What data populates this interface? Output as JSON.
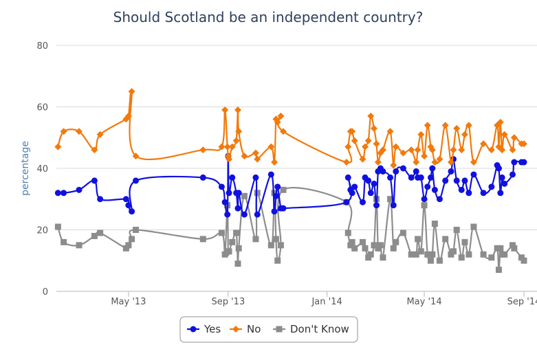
{
  "chart_data": {
    "type": "line",
    "title": "Should Scotland be an independent country?",
    "xlabel": "",
    "ylabel": "percentage",
    "ylim": [
      0,
      80
    ],
    "yticks": [
      "0",
      "20",
      "40",
      "60",
      "80"
    ],
    "xlim": [
      "2013-02-01",
      "2014-09-01"
    ],
    "xticks": [
      {
        "date": "2013-05-01",
        "label": "May '13"
      },
      {
        "date": "2013-09-01",
        "label": "Sep '13"
      },
      {
        "date": "2014-01-01",
        "label": "Jan '14"
      },
      {
        "date": "2014-05-01",
        "label": "May '14"
      },
      {
        "date": "2014-09-01",
        "label": "Sep '14"
      }
    ],
    "grid": true,
    "legend": "bottom-center",
    "series": [
      {
        "name": "Yes",
        "color": "#1010e0",
        "marker": "circle",
        "x": [
          "2013-02-03",
          "2013-02-10",
          "2013-03-01",
          "2013-03-20",
          "2013-03-27",
          "2013-04-28",
          "2013-05-01",
          "2013-05-05",
          "2013-05-10",
          "2013-08-01",
          "2013-08-24",
          "2013-08-28",
          "2013-08-31",
          "2013-09-01",
          "2013-09-02",
          "2013-09-06",
          "2013-09-11",
          "2013-09-13",
          "2013-09-14",
          "2013-09-21",
          "2013-10-05",
          "2013-10-07",
          "2013-10-24",
          "2013-10-28",
          "2013-10-30",
          "2013-11-01",
          "2013-11-05",
          "2013-11-08",
          "2014-01-25",
          "2014-01-27",
          "2014-01-30",
          "2014-02-01",
          "2014-02-04",
          "2014-02-14",
          "2014-02-17",
          "2014-02-21",
          "2014-02-24",
          "2014-02-28",
          "2014-03-03",
          "2014-03-05",
          "2014-03-08",
          "2014-03-11",
          "2014-03-20",
          "2014-03-24",
          "2014-03-27",
          "2014-04-05",
          "2014-04-15",
          "2014-04-21",
          "2014-04-23",
          "2014-04-27",
          "2014-05-01",
          "2014-05-05",
          "2014-05-09",
          "2014-05-11",
          "2014-05-14",
          "2014-05-20",
          "2014-05-27",
          "2014-06-03",
          "2014-06-06",
          "2014-06-10",
          "2014-06-16",
          "2014-06-20",
          "2014-06-25",
          "2014-07-01",
          "2014-07-13",
          "2014-07-23",
          "2014-07-30",
          "2014-08-01",
          "2014-08-03",
          "2014-08-05",
          "2014-08-08",
          "2014-08-18",
          "2014-08-20",
          "2014-08-29",
          "2014-09-01"
        ],
        "values": [
          32,
          32,
          33,
          36,
          30,
          30,
          28,
          26,
          36,
          37,
          34,
          29,
          25,
          44,
          32,
          37,
          32,
          27,
          32,
          25,
          37,
          25,
          38,
          26,
          31,
          34,
          27,
          27,
          29,
          37,
          33,
          32,
          34,
          29,
          37,
          36,
          32,
          35,
          28,
          39,
          40,
          39,
          37,
          28,
          39,
          40,
          37,
          39,
          37,
          37,
          30,
          34,
          37,
          40,
          33,
          30,
          36,
          39,
          43,
          36,
          33,
          36,
          32,
          38,
          32,
          34,
          41,
          40,
          32,
          37,
          35,
          38,
          42,
          42,
          42
        ]
      },
      {
        "name": "No",
        "color": "#f27a0c",
        "marker": "diamond",
        "x": [
          "2013-02-03",
          "2013-02-10",
          "2013-03-01",
          "2013-03-20",
          "2013-03-27",
          "2013-04-28",
          "2013-05-01",
          "2013-05-05",
          "2013-05-10",
          "2013-08-01",
          "2013-08-24",
          "2013-08-28",
          "2013-08-31",
          "2013-09-01",
          "2013-09-02",
          "2013-09-06",
          "2013-09-11",
          "2013-09-13",
          "2013-09-14",
          "2013-09-21",
          "2013-10-05",
          "2013-10-07",
          "2013-10-24",
          "2013-10-28",
          "2013-10-30",
          "2013-11-01",
          "2013-11-05",
          "2013-11-08",
          "2014-01-25",
          "2014-01-27",
          "2014-01-30",
          "2014-02-01",
          "2014-02-04",
          "2014-02-14",
          "2014-02-17",
          "2014-02-21",
          "2014-02-24",
          "2014-02-28",
          "2014-03-03",
          "2014-03-05",
          "2014-03-08",
          "2014-03-11",
          "2014-03-20",
          "2014-03-24",
          "2014-03-27",
          "2014-04-05",
          "2014-04-15",
          "2014-04-21",
          "2014-04-23",
          "2014-04-27",
          "2014-05-01",
          "2014-05-05",
          "2014-05-09",
          "2014-05-11",
          "2014-05-14",
          "2014-05-20",
          "2014-05-27",
          "2014-06-03",
          "2014-06-06",
          "2014-06-10",
          "2014-06-16",
          "2014-06-20",
          "2014-06-25",
          "2014-07-01",
          "2014-07-13",
          "2014-07-23",
          "2014-07-30",
          "2014-08-01",
          "2014-08-03",
          "2014-08-05",
          "2014-08-08",
          "2014-08-18",
          "2014-08-20",
          "2014-08-29",
          "2014-09-01"
        ],
        "values": [
          47,
          52,
          52,
          46,
          51,
          56,
          57,
          65,
          44,
          46,
          47,
          59,
          47,
          44,
          43,
          47,
          49,
          59,
          52,
          44,
          45,
          43,
          47,
          42,
          56,
          55,
          57,
          52,
          42,
          47,
          52,
          52,
          49,
          43,
          47,
          49,
          57,
          53,
          48,
          42,
          45,
          46,
          52,
          41,
          47,
          45,
          46,
          42,
          46,
          51,
          44,
          54,
          47,
          46,
          42,
          43,
          54,
          42,
          46,
          53,
          46,
          51,
          54,
          42,
          48,
          46,
          54,
          47,
          55,
          46,
          51,
          46,
          50,
          48,
          48
        ]
      },
      {
        "name": "Don't Know",
        "color": "#8c8c8c",
        "marker": "square",
        "x": [
          "2013-02-03",
          "2013-02-10",
          "2013-03-01",
          "2013-03-20",
          "2013-03-27",
          "2013-04-28",
          "2013-05-01",
          "2013-05-05",
          "2013-05-10",
          "2013-08-01",
          "2013-08-24",
          "2013-08-28",
          "2013-08-31",
          "2013-09-01",
          "2013-09-02",
          "2013-09-06",
          "2013-09-11",
          "2013-09-13",
          "2013-09-14",
          "2013-09-21",
          "2013-10-05",
          "2013-10-07",
          "2013-10-24",
          "2013-10-28",
          "2013-10-30",
          "2013-11-01",
          "2013-11-05",
          "2013-11-08",
          "2014-01-25",
          "2014-01-27",
          "2014-01-30",
          "2014-02-01",
          "2014-02-04",
          "2014-02-14",
          "2014-02-17",
          "2014-02-21",
          "2014-02-24",
          "2014-02-28",
          "2014-03-03",
          "2014-03-05",
          "2014-03-08",
          "2014-03-11",
          "2014-03-20",
          "2014-03-24",
          "2014-03-27",
          "2014-04-05",
          "2014-04-15",
          "2014-04-21",
          "2014-04-23",
          "2014-04-27",
          "2014-05-01",
          "2014-05-05",
          "2014-05-09",
          "2014-05-11",
          "2014-05-14",
          "2014-05-20",
          "2014-05-27",
          "2014-06-03",
          "2014-06-06",
          "2014-06-10",
          "2014-06-16",
          "2014-06-20",
          "2014-06-25",
          "2014-07-01",
          "2014-07-13",
          "2014-07-23",
          "2014-07-30",
          "2014-08-01",
          "2014-08-03",
          "2014-08-05",
          "2014-08-08",
          "2014-08-18",
          "2014-08-20",
          "2014-08-29",
          "2014-09-01"
        ],
        "values": [
          21,
          16,
          15,
          18,
          19,
          14,
          15,
          17,
          20,
          17,
          19,
          12,
          28,
          13,
          13,
          16,
          19,
          9,
          14,
          31,
          17,
          32,
          15,
          32,
          17,
          10,
          15,
          33,
          29,
          19,
          15,
          16,
          14,
          16,
          14,
          11,
          12,
          15,
          30,
          14,
          15,
          11,
          30,
          14,
          16,
          19,
          12,
          12,
          17,
          13,
          28,
          12,
          10,
          12,
          22,
          10,
          17,
          12,
          13,
          20,
          11,
          16,
          12,
          21,
          12,
          11,
          14,
          7,
          14,
          12,
          12,
          15,
          14,
          11,
          10
        ]
      }
    ]
  }
}
